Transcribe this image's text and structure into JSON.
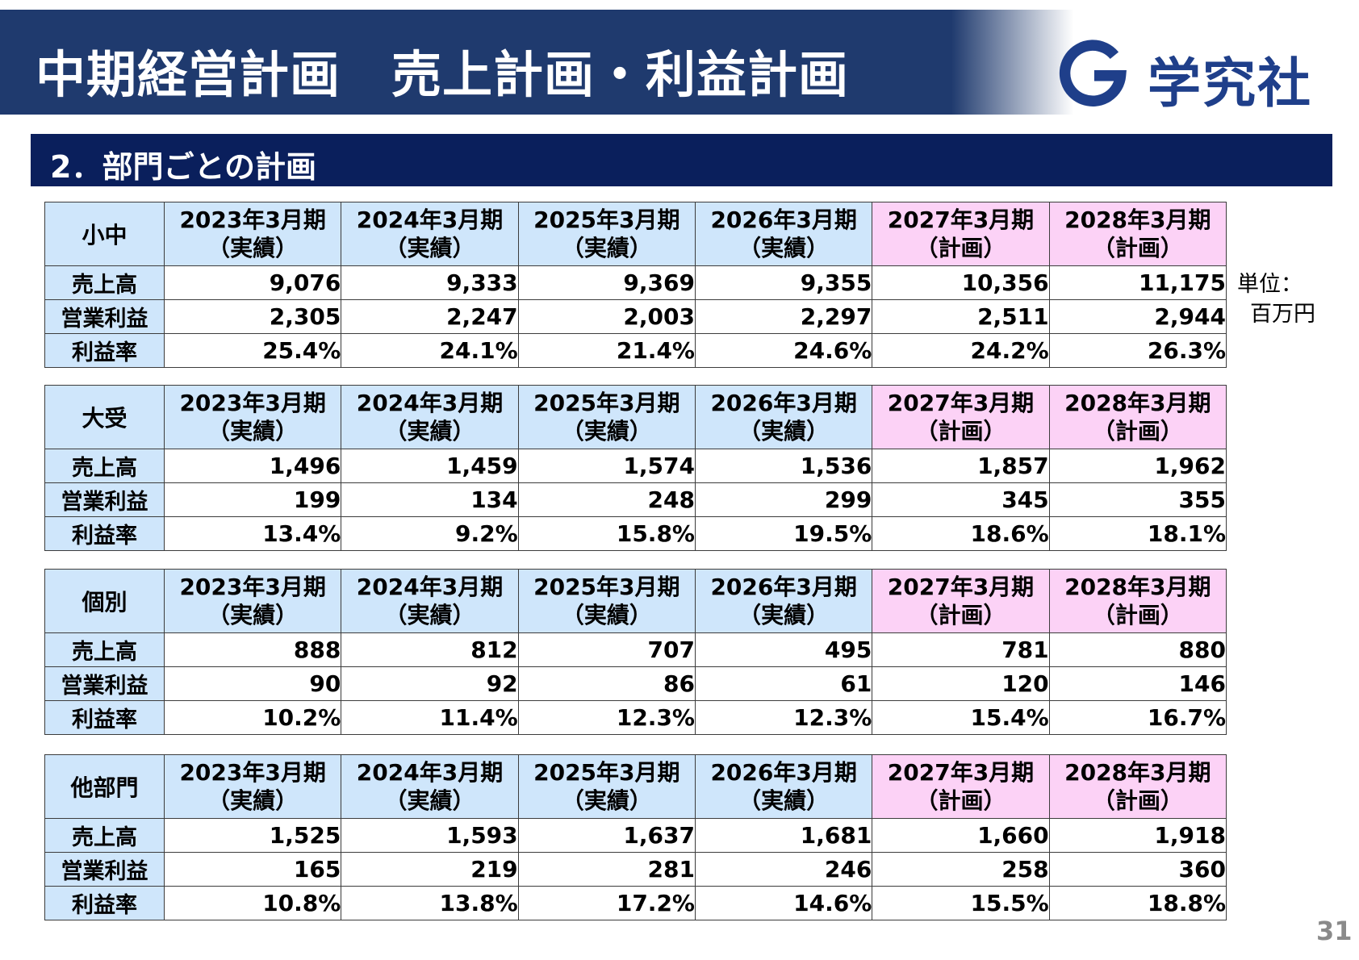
{
  "header": {
    "title": "中期経営計画　売上計画・利益計画"
  },
  "logo": {
    "text": "学究社",
    "brand_color": "#1f3f8a"
  },
  "section": {
    "title": "2．部門ごとの計画"
  },
  "unit": {
    "line1": "単位：",
    "line2": "百万円"
  },
  "page_number": "31",
  "columns": [
    {
      "year": "2023年3月期",
      "type": "（実績）",
      "plan": false
    },
    {
      "year": "2024年3月期",
      "type": "（実績）",
      "plan": false
    },
    {
      "year": "2025年3月期",
      "type": "（実績）",
      "plan": false
    },
    {
      "year": "2026年3月期",
      "type": "（実績）",
      "plan": false
    },
    {
      "year": "2027年3月期",
      "type": "（計画）",
      "plan": true
    },
    {
      "year": "2028年3月期",
      "type": "（計画）",
      "plan": true
    }
  ],
  "row_labels": [
    "売上高",
    "営業利益",
    "利益率"
  ],
  "tables": [
    {
      "name": "小中",
      "rows": [
        [
          "9,076",
          "9,333",
          "9,369",
          "9,355",
          "10,356",
          "11,175"
        ],
        [
          "2,305",
          "2,247",
          "2,003",
          "2,297",
          "2,511",
          "2,944"
        ],
        [
          "25.4%",
          "24.1%",
          "21.4%",
          "24.6%",
          "24.2%",
          "26.3%"
        ]
      ]
    },
    {
      "name": "大受",
      "rows": [
        [
          "1,496",
          "1,459",
          "1,574",
          "1,536",
          "1,857",
          "1,962"
        ],
        [
          "199",
          "134",
          "248",
          "299",
          "345",
          "355"
        ],
        [
          "13.4%",
          "9.2%",
          "15.8%",
          "19.5%",
          "18.6%",
          "18.1%"
        ]
      ]
    },
    {
      "name": "個別",
      "rows": [
        [
          "888",
          "812",
          "707",
          "495",
          "781",
          "880"
        ],
        [
          "90",
          "92",
          "86",
          "61",
          "120",
          "146"
        ],
        [
          "10.2%",
          "11.4%",
          "12.3%",
          "12.3%",
          "15.4%",
          "16.7%"
        ]
      ]
    },
    {
      "name": "他部門",
      "rows": [
        [
          "1,525",
          "1,593",
          "1,637",
          "1,681",
          "1,660",
          "1,918"
        ],
        [
          "165",
          "219",
          "281",
          "246",
          "258",
          "360"
        ],
        [
          "10.8%",
          "13.8%",
          "17.2%",
          "14.6%",
          "15.5%",
          "18.8%"
        ]
      ]
    }
  ]
}
